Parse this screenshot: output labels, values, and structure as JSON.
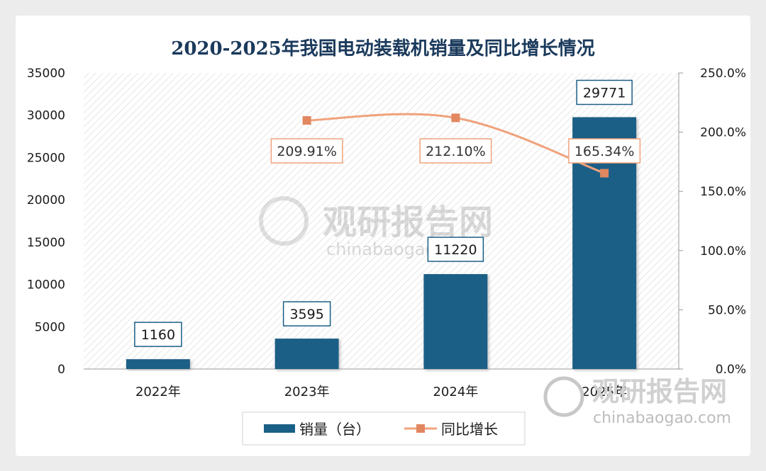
{
  "chart_data": {
    "type": "bar",
    "title": "2020-2025年我国电动装载机销量及同比增长情况",
    "categories": [
      "2022年",
      "2023年",
      "2024年",
      "2025年"
    ],
    "series": [
      {
        "name": "销量（台）",
        "type": "bar",
        "axis": "left",
        "values": [
          1160,
          3595,
          11220,
          29771
        ]
      },
      {
        "name": "同比增长",
        "type": "line",
        "axis": "right",
        "values": [
          null,
          209.91,
          212.1,
          165.34
        ],
        "labels": [
          "",
          "209.91%",
          "212.10%",
          "165.34%"
        ]
      }
    ],
    "ylim": [
      0,
      35000
    ],
    "y_ticks": [
      "0",
      "5000",
      "10000",
      "15000",
      "20000",
      "25000",
      "30000",
      "35000"
    ],
    "y2lim": [
      0,
      250
    ],
    "y2_ticks": [
      "0.0%",
      "50.0%",
      "100.0%",
      "150.0%",
      "200.0%",
      "250.0%"
    ],
    "legend_position": "bottom",
    "colors": {
      "bar": "#1a5f86",
      "line": "#f0a27c",
      "marker": "#e2875f",
      "title": "#1b3a5c"
    }
  },
  "watermark": {
    "brand": "观研报告网",
    "url": "chinabaogao.com"
  }
}
